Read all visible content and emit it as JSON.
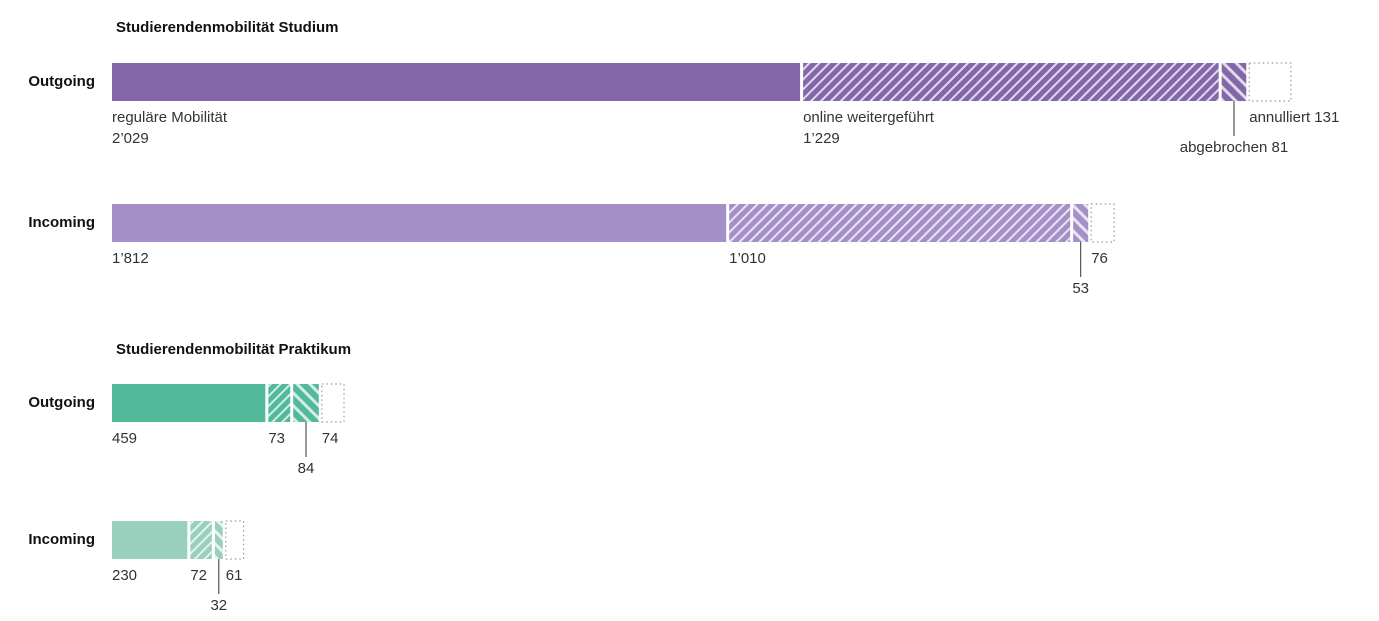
{
  "chart_data": [
    {
      "type": "stacked-bar",
      "title": "Studierendenmobilität Studium",
      "categories": [
        "Outgoing",
        "Incoming"
      ],
      "colors": [
        "#8466aa",
        "#a58fc8"
      ],
      "series": [
        {
          "name": "reguläre Mobilität",
          "pattern": "solid",
          "values": [
            2029,
            1812
          ],
          "value_labels": [
            "2’029",
            "1’812"
          ]
        },
        {
          "name": "online weitergeführt",
          "pattern": "hatch",
          "values": [
            1229,
            1010
          ],
          "value_labels": [
            "1’229",
            "1’010"
          ]
        },
        {
          "name": "abgebrochen",
          "pattern": "backhatch",
          "values": [
            81,
            53
          ]
        },
        {
          "name": "annulliert",
          "pattern": "dotted",
          "values": [
            131,
            76
          ]
        }
      ]
    },
    {
      "type": "stacked-bar",
      "title": "Studierendenmobilität Praktikum",
      "categories": [
        "Outgoing",
        "Incoming"
      ],
      "colors": [
        "#52b99a",
        "#99d0bd"
      ],
      "series": [
        {
          "pattern": "solid",
          "values": [
            459,
            230
          ]
        },
        {
          "pattern": "hatch",
          "values": [
            73,
            72
          ]
        },
        {
          "pattern": "backhatch",
          "values": [
            84,
            32
          ]
        },
        {
          "pattern": "dotted",
          "values": [
            74,
            61
          ]
        }
      ]
    }
  ]
}
